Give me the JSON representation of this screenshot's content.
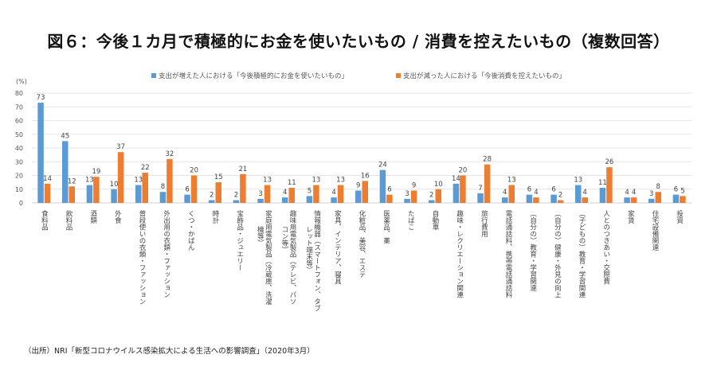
{
  "chart_data": {
    "type": "bar",
    "title": "図６：今後１カ月で積極的にお金を使いたいもの / 消費を控えたいもの（複数回答）",
    "ylabel": "(%)",
    "xlabel": "",
    "ylim": [
      0,
      80
    ],
    "yticks": [
      0,
      10,
      20,
      30,
      40,
      50,
      60,
      70,
      80
    ],
    "grid": true,
    "legend_position": "top",
    "categories": [
      [
        "食料品"
      ],
      [
        "飲料品"
      ],
      [
        "酒類"
      ],
      [
        "外食"
      ],
      [
        "普段使いの衣類・ファッション"
      ],
      [
        "外出用の衣類・ファッション"
      ],
      [
        "くつ・かばん"
      ],
      [
        "時計"
      ],
      [
        "宝飾品・ジュエリー"
      ],
      [
        "家庭用電気製品（冷蔵庫、洗濯",
        "機等）"
      ],
      [
        "趣味用電気製品（テレビ、パソ",
        "コン等）"
      ],
      [
        "情報機器（スマートフォン、タブ",
        "レット端末等）"
      ],
      [
        "家具、インテリア、寝具"
      ],
      [
        "化粧品、美容、エステ"
      ],
      [
        "医薬品、薬"
      ],
      [
        "たばこ"
      ],
      [
        "自動車"
      ],
      [
        "趣味・レクリエーション関連"
      ],
      [
        "旅行費用"
      ],
      [
        "電話通話料、携帯電話通話料"
      ],
      [
        "（自分の）教育・学習関連"
      ],
      [
        "（自分の）健康・外見の向上"
      ],
      [
        "（子どもの）教育・学習関連"
      ],
      [
        "人とのつきあい・交際費"
      ],
      [
        "家賃"
      ],
      [
        "住宅設備関連"
      ],
      [
        "投資"
      ]
    ],
    "series": [
      {
        "name": "支出が増えた人における「今後積極的にお金を使いたいもの」",
        "color": "#5B9BD5",
        "values": [
          73,
          45,
          13,
          10,
          13,
          8,
          6,
          2,
          2,
          3,
          4,
          5,
          4,
          9,
          24,
          3,
          2,
          14,
          7,
          4,
          6,
          6,
          13,
          11,
          4,
          3,
          6
        ]
      },
      {
        "name": "支出が減った人における「今後消費を控えたいもの」",
        "color": "#ED7D31",
        "values": [
          14,
          12,
          19,
          37,
          22,
          32,
          20,
          15,
          21,
          13,
          11,
          13,
          13,
          16,
          6,
          9,
          10,
          20,
          28,
          13,
          4,
          2,
          4,
          26,
          4,
          8,
          5
        ]
      }
    ],
    "source": "（出所）NRI「新型コロナウイルス感染拡大による生活への影響調査」（2020年3月）"
  }
}
